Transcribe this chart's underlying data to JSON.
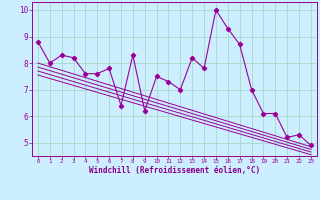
{
  "xlabel": "Windchill (Refroidissement éolien,°C)",
  "bg_color": "#cceeff",
  "grid_color": "#aaddcc",
  "line_color": "#990099",
  "xlabel_color": "#880088",
  "xlim": [
    -0.5,
    23.5
  ],
  "ylim": [
    4.5,
    10.3
  ],
  "yticks": [
    5,
    6,
    7,
    8,
    9,
    10
  ],
  "xticks": [
    0,
    1,
    2,
    3,
    4,
    5,
    6,
    7,
    8,
    9,
    10,
    11,
    12,
    13,
    14,
    15,
    16,
    17,
    18,
    19,
    20,
    21,
    22,
    23
  ],
  "main_x": [
    0,
    1,
    2,
    3,
    4,
    5,
    6,
    7,
    8,
    9,
    10,
    11,
    12,
    13,
    14,
    15,
    16,
    17,
    18,
    19,
    20,
    21,
    22,
    23
  ],
  "main_y": [
    8.8,
    8.0,
    8.3,
    8.2,
    7.6,
    7.6,
    7.8,
    6.4,
    8.3,
    6.2,
    7.5,
    7.3,
    7.0,
    8.2,
    7.8,
    10.0,
    9.3,
    8.7,
    7.0,
    6.1,
    6.1,
    5.2,
    5.3,
    4.9
  ],
  "reg_lines": [
    {
      "x": [
        0,
        23
      ],
      "y": [
        8.0,
        4.85
      ]
    },
    {
      "x": [
        0,
        23
      ],
      "y": [
        7.85,
        4.75
      ]
    },
    {
      "x": [
        0,
        23
      ],
      "y": [
        7.7,
        4.65
      ]
    },
    {
      "x": [
        0,
        23
      ],
      "y": [
        7.55,
        4.55
      ]
    }
  ]
}
